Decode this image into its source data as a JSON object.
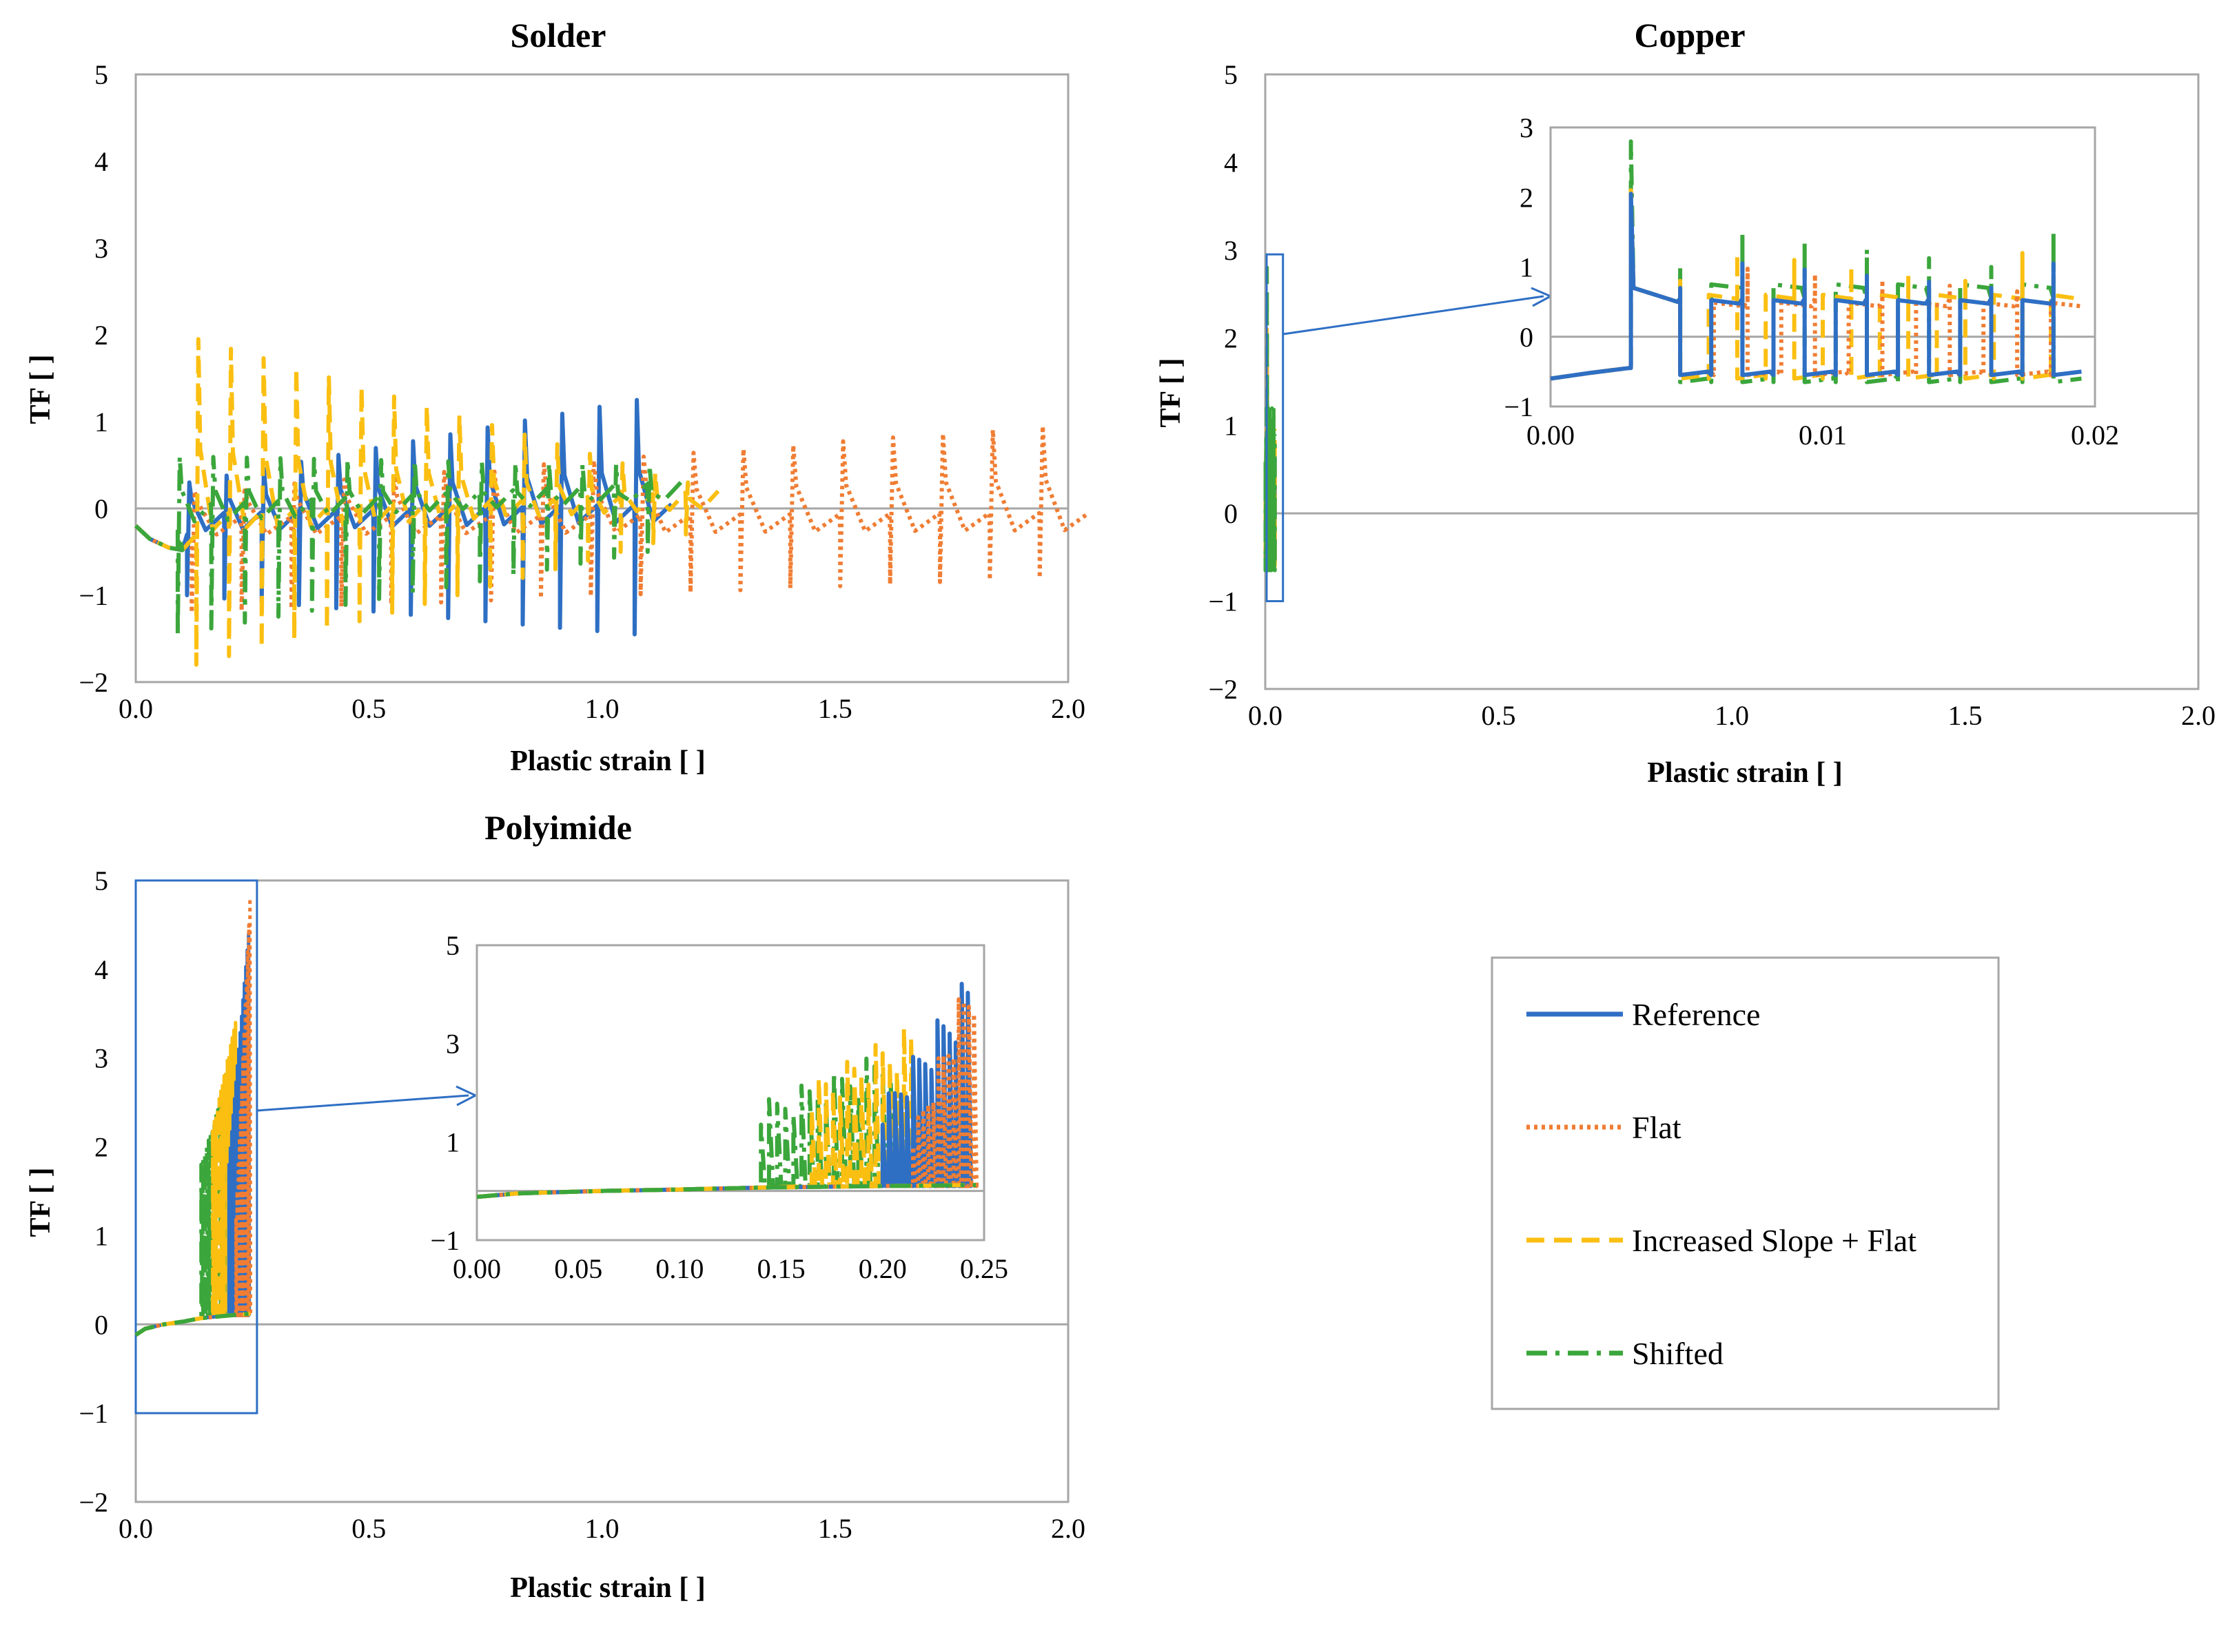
{
  "colors": {
    "Reference": "#2e6fc4",
    "Flat": "#f07d33",
    "Increased Slope + Flat": "#fbbf12",
    "Shifted": "#3ba63b",
    "zoom_box": "#2e6fc4",
    "zero_line": "#a6a6a6",
    "frame": "#a6a6a6"
  },
  "legend": {
    "entries": [
      {
        "name": "Reference",
        "style": "solid"
      },
      {
        "name": "Flat",
        "style": "dotted"
      },
      {
        "name": "Increased Slope + Flat",
        "style": "dashed"
      },
      {
        "name": "Shifted",
        "style": "dash-dot"
      }
    ]
  },
  "chart_data": [
    {
      "type": "line",
      "title": "Solder",
      "xlabel": "Plastic strain [  ]",
      "ylabel": "TF [  ]",
      "xlim": [
        0,
        2
      ],
      "ylim": [
        -2,
        5
      ],
      "xticks": [
        "0.0",
        "0.5",
        "1.0",
        "1.5",
        "2.0"
      ],
      "yticks": [
        "−2",
        "−1",
        "0",
        "1",
        "2",
        "3",
        "4",
        "5"
      ],
      "zero_line": true,
      "series": [
        {
          "name": "Reference",
          "period": 0.08,
          "x_start": 0.11,
          "x_end": 1.13,
          "low_start": -1.0,
          "low_end": -1.45,
          "high_start": 0.3,
          "high_end": 1.25,
          "base_start": -0.3,
          "base_end": -0.2
        },
        {
          "name": "Flat",
          "period": 0.107,
          "x_start": 0.12,
          "x_end": 1.97,
          "low_start": -1.2,
          "low_end": -0.8,
          "high_start": 0.2,
          "high_end": 0.95,
          "base_start": -0.35,
          "base_end": -0.3
        },
        {
          "name": "Increased Slope + Flat",
          "period": 0.07,
          "x_start": 0.13,
          "x_end": 1.2,
          "low_start": -1.8,
          "low_end": -0.3,
          "high_start": 1.95,
          "high_end": 0.3,
          "base_start": -0.3,
          "base_end": -0.05
        },
        {
          "name": "Shifted",
          "period": 0.072,
          "x_start": 0.09,
          "x_end": 1.1,
          "low_start": -1.45,
          "low_end": -0.5,
          "high_start": 0.6,
          "high_end": 0.5,
          "base_start": -0.2,
          "base_end": 0.05
        }
      ],
      "initial_curve": [
        [
          0.0,
          -0.2
        ],
        [
          0.03,
          -0.35
        ],
        [
          0.07,
          -0.45
        ],
        [
          0.1,
          -0.48
        ]
      ]
    },
    {
      "type": "line",
      "title": "Copper",
      "xlabel": "Plastic strain [  ]",
      "ylabel": "TF [  ]",
      "xlim": [
        0,
        2
      ],
      "ylim": [
        -2,
        5
      ],
      "xticks": [
        "0.0",
        "0.5",
        "1.0",
        "1.5",
        "2.0"
      ],
      "yticks": [
        "−2",
        "−1",
        "0",
        "1",
        "2",
        "3",
        "4",
        "5"
      ],
      "zero_line": true,
      "zoom_region": {
        "x": [
          0,
          0.035
        ],
        "y": [
          -1,
          2.95
        ]
      },
      "inset": {
        "xlim": [
          0,
          0.021
        ],
        "ylim": [
          -1,
          3
        ],
        "xticks": [
          "0.00",
          "0.01",
          "0.02"
        ],
        "yticks": [
          "−1",
          "0",
          "1",
          "2",
          "3"
        ],
        "first_jump_x": 0.0031,
        "first_jump_y": {
          "Reference": 2.05,
          "Flat": 2.05,
          "Increased Slope + Flat": 2.1,
          "Shifted": 2.8
        },
        "series": [
          {
            "name": "Reference",
            "period": 0.0012,
            "x_end": 0.0195,
            "low": -0.55,
            "high": 0.7
          },
          {
            "name": "Flat",
            "period": 0.0013,
            "x_end": 0.0195,
            "low": -0.55,
            "high": 0.65
          },
          {
            "name": "Increased Slope + Flat",
            "period": 0.0011,
            "x_end": 0.0197,
            "low": -0.6,
            "high": 0.8
          },
          {
            "name": "Shifted",
            "period": 0.0012,
            "x_end": 0.0203,
            "low": -0.65,
            "high": 1.0
          }
        ],
        "initial_curve": [
          [
            0.0,
            -0.6
          ],
          [
            0.0015,
            -0.52
          ],
          [
            0.003,
            -0.45
          ]
        ]
      }
    },
    {
      "type": "line",
      "title": "Polyimide",
      "xlabel": "Plastic strain [  ]",
      "ylabel": "TF [  ]",
      "xlim": [
        0,
        2
      ],
      "ylim": [
        -2,
        5
      ],
      "xticks": [
        "0.0",
        "0.5",
        "1.0",
        "1.5",
        "2.0"
      ],
      "yticks": [
        "−2",
        "−1",
        "0",
        "1",
        "2",
        "3",
        "4",
        "5"
      ],
      "zero_line": true,
      "zoom_region": {
        "x": [
          0,
          0.26
        ],
        "y": [
          -1,
          5
        ]
      },
      "inset": {
        "xlim": [
          0,
          0.25
        ],
        "ylim": [
          -1,
          5
        ],
        "xticks": [
          "0.00",
          "0.05",
          "0.10",
          "0.15",
          "0.20",
          "0.25"
        ],
        "yticks": [
          "−1",
          "1",
          "3",
          "5"
        ],
        "series": [
          {
            "name": "Shifted",
            "x_start": 0.14,
            "x_end": 0.205,
            "period": 0.004,
            "high_start": 1.8,
            "high_end": 2.9
          },
          {
            "name": "Increased Slope + Flat",
            "x_start": 0.165,
            "x_end": 0.215,
            "period": 0.0035,
            "high_start": 2.2,
            "high_end": 3.4
          },
          {
            "name": "Reference",
            "x_start": 0.2,
            "x_end": 0.243,
            "period": 0.003,
            "high_start": 1.8,
            "high_end": 4.4
          },
          {
            "name": "Flat",
            "x_start": 0.215,
            "x_end": 0.246,
            "period": 0.0025,
            "high_start": 1.2,
            "high_end": 4.8
          }
        ],
        "initial_curve": [
          [
            0.0,
            -0.12
          ],
          [
            0.02,
            -0.05
          ],
          [
            0.06,
            0.0
          ],
          [
            0.1,
            0.03
          ],
          [
            0.14,
            0.07
          ],
          [
            0.2,
            0.1
          ],
          [
            0.246,
            0.12
          ]
        ]
      }
    }
  ]
}
